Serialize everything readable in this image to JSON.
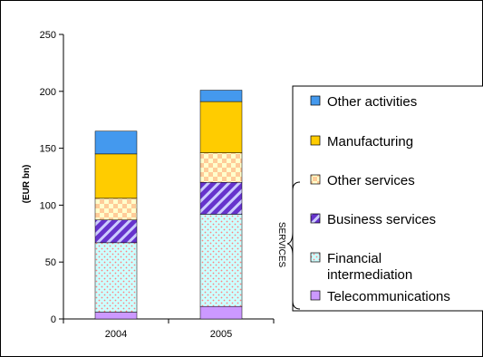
{
  "chart_data": {
    "type": "bar",
    "stacked": true,
    "categories": [
      "2004",
      "2005"
    ],
    "ylabel": "(EUR bn)",
    "ylim": [
      0,
      250
    ],
    "yticks": [
      0,
      50,
      100,
      150,
      200,
      250
    ],
    "grid": false,
    "legend_position": "right",
    "series": [
      {
        "name": "Telecommunications",
        "values": [
          6,
          11
        ],
        "color": "#cc99ff",
        "pattern": "solid"
      },
      {
        "name": "Financial intermediation",
        "values": [
          61,
          81
        ],
        "color": "#ccffff",
        "pattern": "dots",
        "pattern_color": "#ff8080"
      },
      {
        "name": "Business services",
        "values": [
          20,
          28
        ],
        "color": "#6633cc",
        "pattern": "diagonal",
        "pattern_color": "#ccccff"
      },
      {
        "name": "Other services",
        "values": [
          19,
          26
        ],
        "color": "#ffffcc",
        "pattern": "checker",
        "pattern_color": "#ffcc99"
      },
      {
        "name": "Manufacturing",
        "values": [
          39,
          45
        ],
        "color": "#ffcc00",
        "pattern": "solid"
      },
      {
        "name": "Other activities",
        "values": [
          20,
          10
        ],
        "color": "#4499ee",
        "pattern": "solid"
      }
    ],
    "legend_labels": [
      [
        "Other activities"
      ],
      [
        "Manufacturing"
      ],
      [
        "Other services"
      ],
      [
        "Business services"
      ],
      [
        "Financial",
        "intermediation"
      ],
      [
        "Telecommunications"
      ]
    ],
    "group_label": "SERVICES"
  }
}
